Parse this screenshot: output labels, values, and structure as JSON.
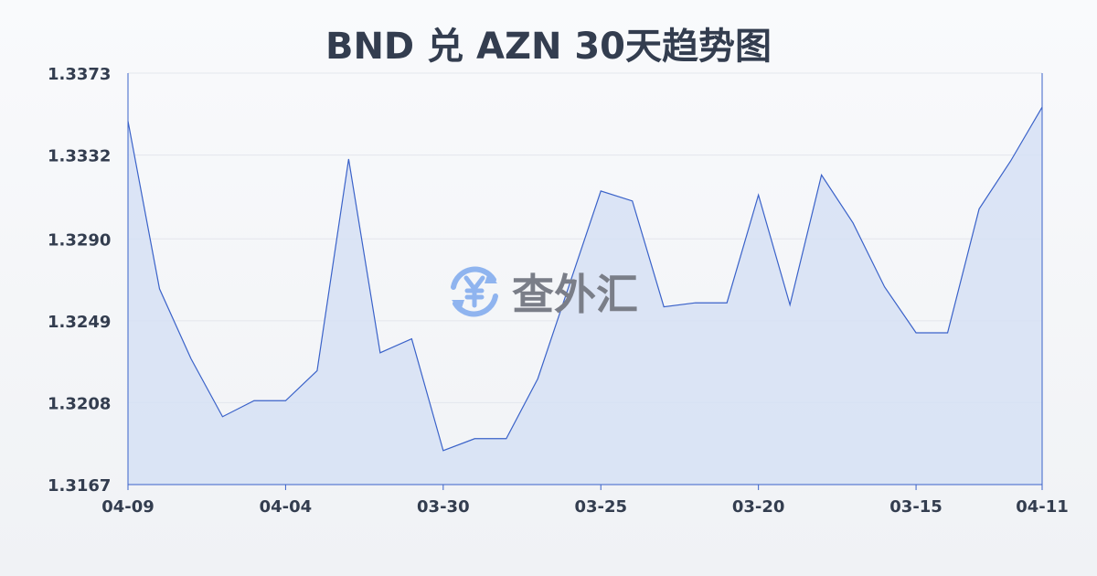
{
  "chart_data": {
    "type": "area",
    "title": "BND 兑 AZN 30天趋势图",
    "x_tick_labels": [
      "04-09",
      "04-04",
      "03-30",
      "03-25",
      "03-20",
      "03-15",
      "04-11"
    ],
    "x_tick_index": [
      0,
      5,
      10,
      15,
      20,
      25,
      29
    ],
    "values": [
      1.3349,
      1.3265,
      1.323,
      1.3201,
      1.3209,
      1.3209,
      1.3224,
      1.333,
      1.3233,
      1.324,
      1.3184,
      1.319,
      1.319,
      1.322,
      1.3267,
      1.3314,
      1.3309,
      1.3256,
      1.3258,
      1.3258,
      1.3312,
      1.3257,
      1.3322,
      1.3298,
      1.3266,
      1.3243,
      1.3243,
      1.3305,
      1.3329,
      1.3356
    ],
    "y_ticks": [
      "1.3167",
      "1.3208",
      "1.3249",
      "1.3290",
      "1.3332",
      "1.3373"
    ],
    "ylim": [
      1.3167,
      1.3373
    ],
    "grid": true,
    "colors": {
      "line": "#3a62c9",
      "fill": "#d6e0f5"
    }
  },
  "watermark": {
    "text": "查外汇",
    "icon": "yen-exchange-icon"
  }
}
